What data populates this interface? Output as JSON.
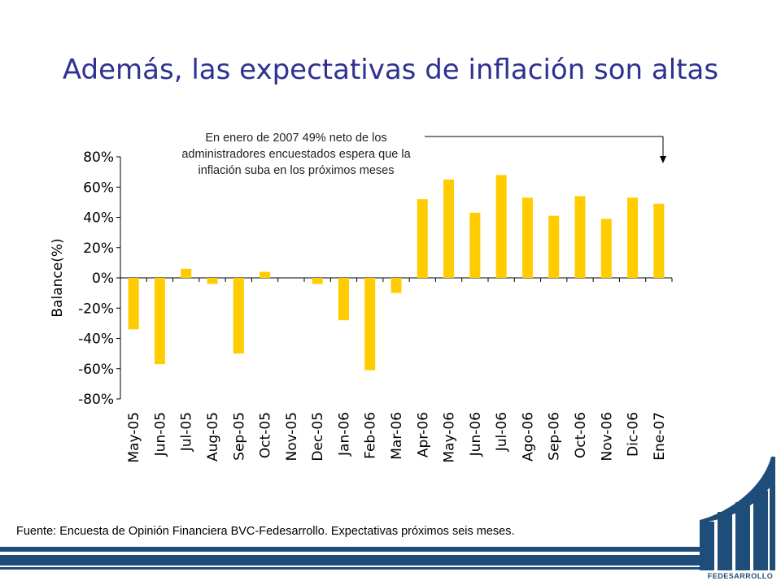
{
  "title": "Además, las expectativas de inflación son altas",
  "annotation": "En enero de 2007 49%  neto de los administradores encuestados espera que la inflación suba en los próximos meses",
  "source": "Fuente: Encuesta de Opinión Financiera BVC-Fedesarrollo. Expectativas próximos seis meses.",
  "logo": {
    "text": "FEDESARROLLO"
  },
  "colors": {
    "title": "#2e3192",
    "bar": "#ffcc00",
    "brand": "#1f4d7a"
  },
  "chart_data": {
    "type": "bar",
    "ylabel": "Balance(%)",
    "ylim": [
      -80,
      80
    ],
    "yticks": [
      80,
      60,
      40,
      20,
      0,
      -20,
      -40,
      -60,
      -80
    ],
    "ytick_labels": [
      "80%",
      "60%",
      "40%",
      "20%",
      "0%",
      "-20%",
      "-40%",
      "-60%",
      "-80%"
    ],
    "categories": [
      "May-05",
      "Jun-05",
      "Jul-05",
      "Aug-05",
      "Sep-05",
      "Oct-05",
      "Nov-05",
      "Dec-05",
      "Jan-06",
      "Feb-06",
      "Mar-06",
      "Apr-06",
      "May-06",
      "Jun-06",
      "Jul-06",
      "Ago-06",
      "Sep-06",
      "Oct-06",
      "Nov-06",
      "Dic-06",
      "Ene-07"
    ],
    "values": [
      -34,
      -57,
      6,
      -4,
      -50,
      4,
      0,
      -4,
      -28,
      -61,
      -10,
      52,
      65,
      43,
      68,
      53,
      41,
      54,
      39,
      53,
      49
    ],
    "grid": false,
    "legend": "none"
  }
}
